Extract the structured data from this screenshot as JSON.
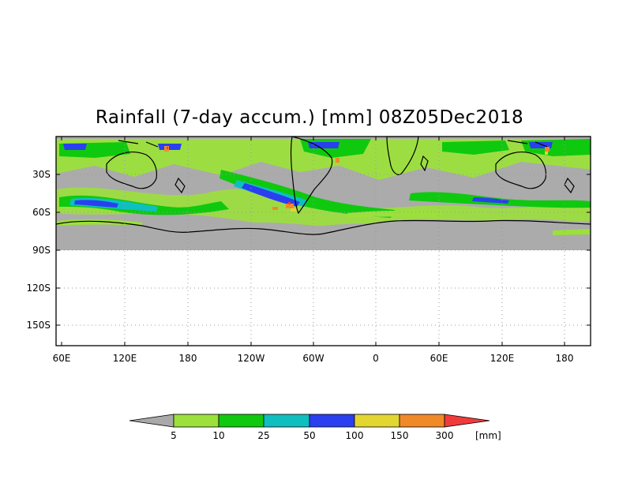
{
  "title": "Rainfall (7-day accum.) [mm] 08Z05Dec2018",
  "map": {
    "x_tick_labels": [
      "60E",
      "120E",
      "180",
      "120W",
      "60W",
      "0",
      "60E",
      "120E",
      "180"
    ],
    "y_tick_labels": [
      "30S",
      "60S",
      "90S",
      "120S",
      "150S"
    ],
    "land_fill_color": "#ababab",
    "grid": "dotted",
    "data_extent_lat": "0 to 90S"
  },
  "colorbar": {
    "labels": [
      "5",
      "10",
      "25",
      "50",
      "100",
      "150",
      "300"
    ],
    "unit": "[mm]",
    "colors": [
      "#a9a9a9",
      "#9be03b",
      "#0fc90f",
      "#0fbfbf",
      "#2a3ff0",
      "#e4d631",
      "#f08a27",
      "#f03b3b"
    ]
  }
}
